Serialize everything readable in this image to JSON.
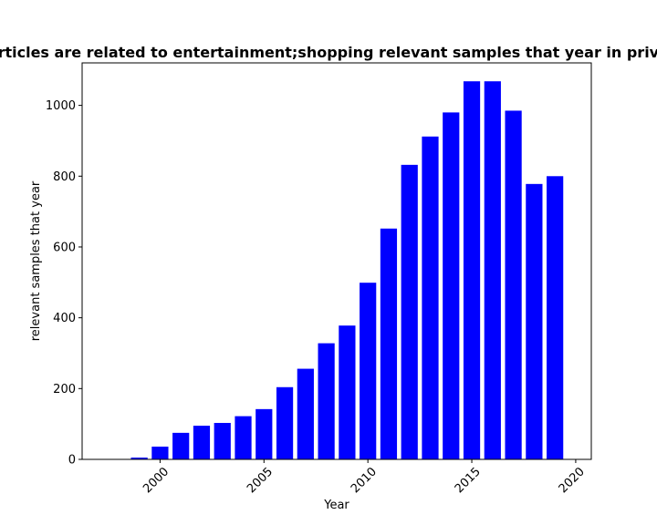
{
  "chart_data": {
    "type": "bar",
    "title": "Articles are related to entertainment;shopping relevant samples that year in privacy",
    "xlabel": "Year",
    "ylabel": "relevant samples that year",
    "xlim": [
      1996.25,
      2020.75
    ],
    "ylim": [
      0,
      1120
    ],
    "xticks": [
      2000,
      2005,
      2010,
      2015,
      2020
    ],
    "yticks": [
      0,
      200,
      400,
      600,
      800,
      1000
    ],
    "bar_color": "#0000ff",
    "x": [
      1999,
      2000,
      2001,
      2002,
      2003,
      2004,
      2005,
      2006,
      2007,
      2008,
      2009,
      2010,
      2011,
      2012,
      2013,
      2014,
      2015,
      2016,
      2017,
      2018,
      2019
    ],
    "values": [
      5,
      36,
      75,
      95,
      103,
      122,
      142,
      204,
      256,
      328,
      378,
      499,
      652,
      832,
      912,
      980,
      1068,
      1068,
      985,
      778,
      800
    ],
    "grid": false
  }
}
